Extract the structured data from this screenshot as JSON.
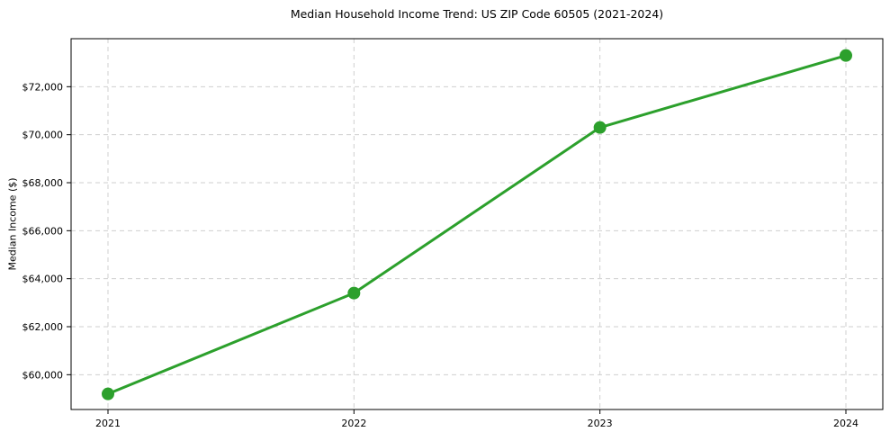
{
  "chart_data": {
    "type": "line",
    "title": "Median Household Income Trend: US ZIP Code 60505 (2021-2024)",
    "xlabel": "",
    "ylabel": "Median Income ($)",
    "categories": [
      "2021",
      "2022",
      "2023",
      "2024"
    ],
    "x": [
      2021,
      2022,
      2023,
      2024
    ],
    "series": [
      {
        "name": "Median Household Income",
        "values": [
          59200,
          63400,
          70300,
          73300
        ]
      }
    ],
    "y_ticks": [
      60000,
      62000,
      64000,
      66000,
      68000,
      70000,
      72000
    ],
    "y_tick_labels": [
      "$60,000",
      "$62,000",
      "$64,000",
      "$66,000",
      "$68,000",
      "$70,000",
      "$72,000"
    ],
    "xlim": [
      2020.85,
      2024.15
    ],
    "ylim": [
      58550,
      74000
    ],
    "grid": true,
    "grid_style": "dashed",
    "legend_position": "none",
    "colors": {
      "line": "#2ca02c",
      "marker": "#2ca02c",
      "grid": "#cfcfcf",
      "spine": "#000000",
      "text": "#000000",
      "background": "#ffffff"
    },
    "marker": "circle",
    "marker_radius": 7,
    "line_width": 3
  }
}
